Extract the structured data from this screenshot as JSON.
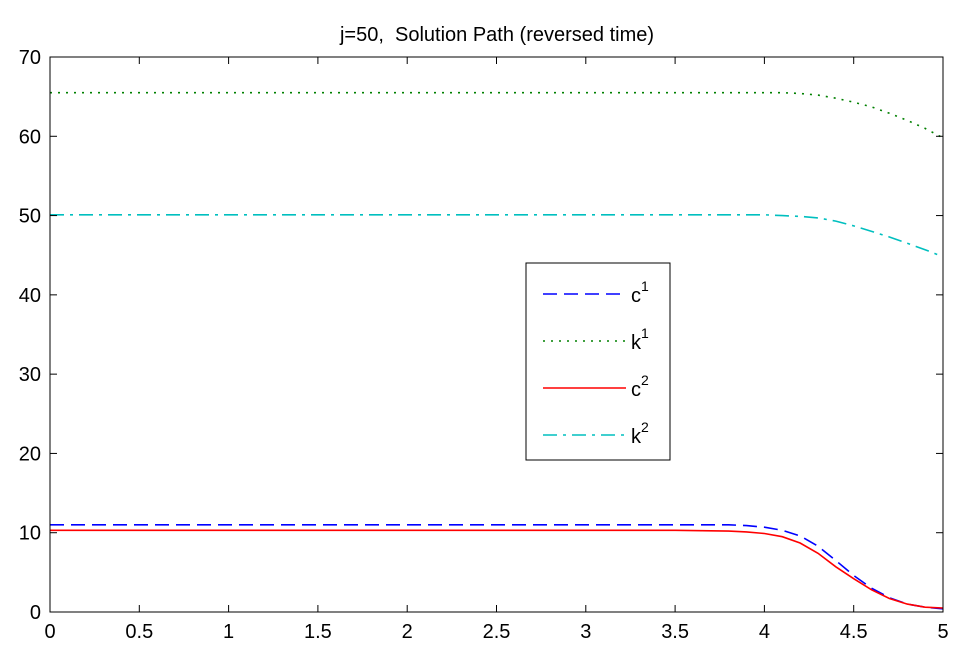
{
  "chart_data": {
    "type": "line",
    "title": "j=50,  Solution Path (reversed time)",
    "xlabel": "",
    "ylabel": "",
    "xlim": [
      0,
      5
    ],
    "ylim": [
      0,
      70
    ],
    "xticks": [
      "0",
      "0.5",
      "1",
      "1.5",
      "2",
      "2.5",
      "3",
      "3.5",
      "4",
      "4.5",
      "5"
    ],
    "yticks": [
      "0",
      "10",
      "20",
      "30",
      "40",
      "50",
      "60",
      "70"
    ],
    "grid": false,
    "legend_position": "center-right",
    "series": [
      {
        "name": "c1",
        "label_base": "c",
        "label_sup": "1",
        "color": "#0000ff",
        "style": "dashed",
        "x": [
          0,
          1,
          2,
          3,
          3.5,
          3.8,
          3.9,
          4.0,
          4.1,
          4.2,
          4.3,
          4.4,
          4.5,
          4.6,
          4.7,
          4.8,
          4.9,
          5.0
        ],
        "y": [
          11.0,
          11.0,
          11.0,
          11.0,
          11.0,
          11.0,
          10.9,
          10.7,
          10.3,
          9.6,
          8.3,
          6.5,
          4.6,
          3.0,
          1.8,
          1.0,
          0.6,
          0.4
        ]
      },
      {
        "name": "k1",
        "label_base": "k",
        "label_sup": "1",
        "color": "#008000",
        "style": "dotted",
        "x": [
          0,
          1,
          2,
          3,
          4.0,
          4.1,
          4.2,
          4.3,
          4.4,
          4.5,
          4.6,
          4.7,
          4.8,
          4.9,
          5.0
        ],
        "y": [
          65.5,
          65.5,
          65.5,
          65.5,
          65.5,
          65.5,
          65.4,
          65.2,
          64.8,
          64.3,
          63.7,
          62.9,
          62.0,
          61.0,
          59.8
        ]
      },
      {
        "name": "c2",
        "label_base": "c",
        "label_sup": "2",
        "color": "#ff0000",
        "style": "solid",
        "x": [
          0,
          1,
          2,
          3,
          3.5,
          3.8,
          3.9,
          4.0,
          4.1,
          4.2,
          4.3,
          4.4,
          4.5,
          4.6,
          4.7,
          4.8,
          4.9,
          5.0
        ],
        "y": [
          10.3,
          10.3,
          10.3,
          10.3,
          10.3,
          10.2,
          10.1,
          9.9,
          9.5,
          8.7,
          7.4,
          5.7,
          4.2,
          2.8,
          1.7,
          1.0,
          0.6,
          0.5
        ]
      },
      {
        "name": "k2",
        "label_base": "k",
        "label_sup": "2",
        "color": "#00bfbf",
        "style": "dashdot",
        "x": [
          0,
          1,
          2,
          3,
          4.0,
          4.1,
          4.2,
          4.3,
          4.4,
          4.5,
          4.6,
          4.7,
          4.8,
          4.9,
          5.0
        ],
        "y": [
          50.1,
          50.1,
          50.1,
          50.1,
          50.1,
          50.0,
          49.9,
          49.7,
          49.3,
          48.7,
          48.0,
          47.3,
          46.5,
          45.7,
          44.8
        ]
      }
    ]
  }
}
